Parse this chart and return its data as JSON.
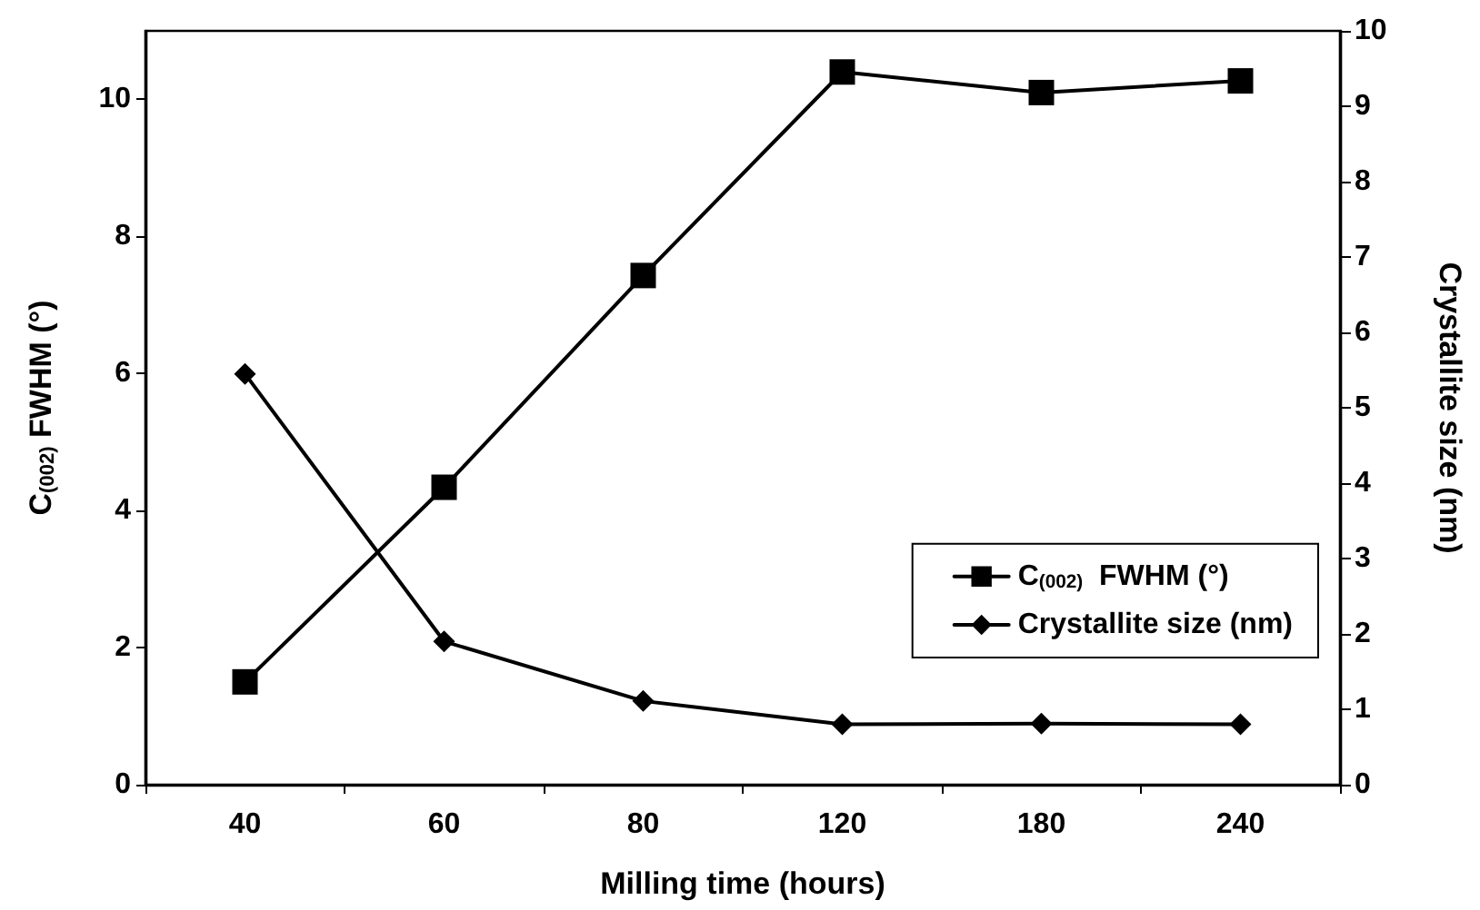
{
  "chart_data": {
    "type": "line",
    "xlabel": "Milling time (hours)",
    "ylabel": "C$_{(002)}$ FWHM (°)",
    "y2label": "Crystallite size (nm)",
    "categories": [
      "40",
      "60",
      "80",
      "120",
      "180",
      "240"
    ],
    "series": [
      {
        "name": "C$_{(002)}$  FWHM (°)",
        "color": "#000000",
        "marker": "square",
        "values": [
          1.5,
          4.34,
          7.43,
          10.4,
          10.1,
          10.27
        ]
      },
      {
        "name": "Crystallite size (nm)",
        "color": "#000000",
        "marker": "diamond",
        "axis": "y2",
        "values": [
          5.45,
          1.9,
          1.11,
          0.8,
          0.81,
          0.8
        ]
      }
    ],
    "ylim": [
      0,
      11
    ],
    "yticks": [
      0,
      2,
      4,
      6,
      8,
      10
    ],
    "y2lim": [
      0,
      10
    ],
    "y2ticks": [
      0,
      1,
      2,
      3,
      4,
      5,
      6,
      7,
      8,
      9,
      10
    ],
    "legend": "bottom right",
    "grid": false,
    "line_style": "solid"
  }
}
